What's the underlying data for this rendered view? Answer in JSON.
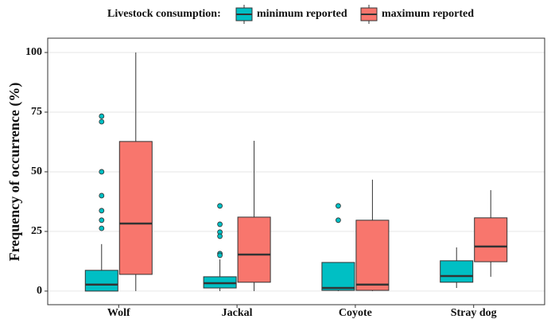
{
  "chart_data": {
    "type": "boxplot",
    "legend_title": "Livestock consumption:",
    "y_label": "Frequency of occurrence (%)",
    "categories": [
      "Wolf",
      "Jackal",
      "Coyote",
      "Stray dog"
    ],
    "ylim": [
      -5.7,
      106
    ],
    "yticks": [
      0,
      25,
      50,
      75,
      100
    ],
    "grid": true,
    "legend_position": "top",
    "series": [
      {
        "name": "minimum reported",
        "color": "#00bfc4",
        "low": [
          0,
          0,
          0,
          1.3
        ],
        "q1": [
          0,
          1.3,
          0.3,
          3.7
        ],
        "median": [
          2.7,
          3.3,
          1.3,
          6.3
        ],
        "q3": [
          8.7,
          6,
          12,
          12.7
        ],
        "high": [
          19.7,
          13.3,
          12,
          18.3
        ],
        "outliers": [
          [
            73.3,
            71,
            50,
            40,
            33.7,
            29.7,
            26.3
          ],
          [
            35.7,
            28,
            24.7,
            23,
            15.7,
            15
          ],
          [
            35.7,
            29.7
          ],
          []
        ]
      },
      {
        "name": "maximum reported",
        "color": "#f8766d",
        "low": [
          0,
          0,
          0,
          6
        ],
        "q1": [
          7,
          3.7,
          0.3,
          12.3
        ],
        "median": [
          28.3,
          15.3,
          2.7,
          18.7
        ],
        "q3": [
          62.7,
          31,
          29.7,
          30.7
        ],
        "high": [
          100,
          63,
          46.7,
          42.3
        ],
        "outliers": [
          [],
          [],
          [],
          []
        ]
      }
    ]
  }
}
